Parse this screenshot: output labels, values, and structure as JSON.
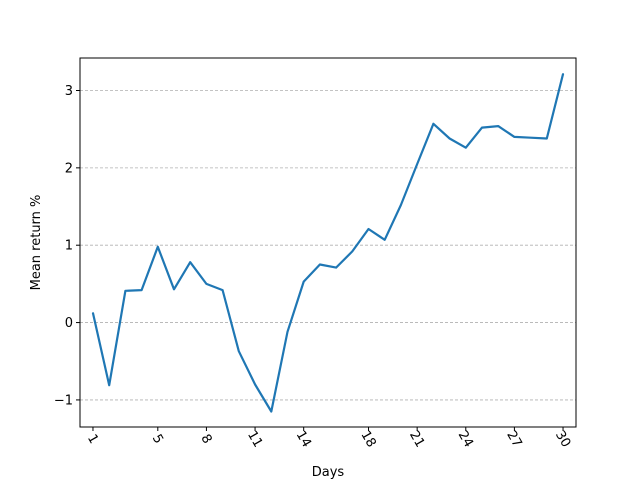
{
  "chart_data": {
    "type": "line",
    "title": "",
    "xlabel": "Days",
    "ylabel": "Mean return %",
    "xlim": [
      0.2,
      30.8
    ],
    "ylim": [
      -1.35,
      3.42
    ],
    "x_ticks": [
      1,
      5,
      8,
      11,
      14,
      18,
      21,
      24,
      27,
      30
    ],
    "y_ticks": [
      -1,
      0,
      1,
      2,
      3
    ],
    "y_tick_labels": [
      "−1",
      "0",
      "1",
      "2",
      "3"
    ],
    "x_tick_rotation_deg": 60,
    "grid": {
      "y": true,
      "x": false,
      "style": "dashed"
    },
    "legend": "none",
    "series": [
      {
        "color": "#1f77b4",
        "x": [
          1,
          2,
          3,
          4,
          5,
          6,
          7,
          8,
          9,
          10,
          11,
          12,
          13,
          14,
          15,
          16,
          17,
          18,
          19,
          20,
          21,
          22,
          23,
          24,
          25,
          26,
          27,
          28,
          29,
          30
        ],
        "y": [
          0.12,
          -0.81,
          0.41,
          0.42,
          0.98,
          0.43,
          0.78,
          0.5,
          0.42,
          -0.37,
          -0.8,
          -1.15,
          -0.12,
          0.53,
          0.75,
          0.71,
          0.92,
          1.21,
          1.07,
          1.52,
          2.05,
          2.57,
          2.38,
          2.26,
          2.52,
          2.54,
          2.4,
          2.39,
          2.38,
          3.21
        ]
      }
    ]
  }
}
